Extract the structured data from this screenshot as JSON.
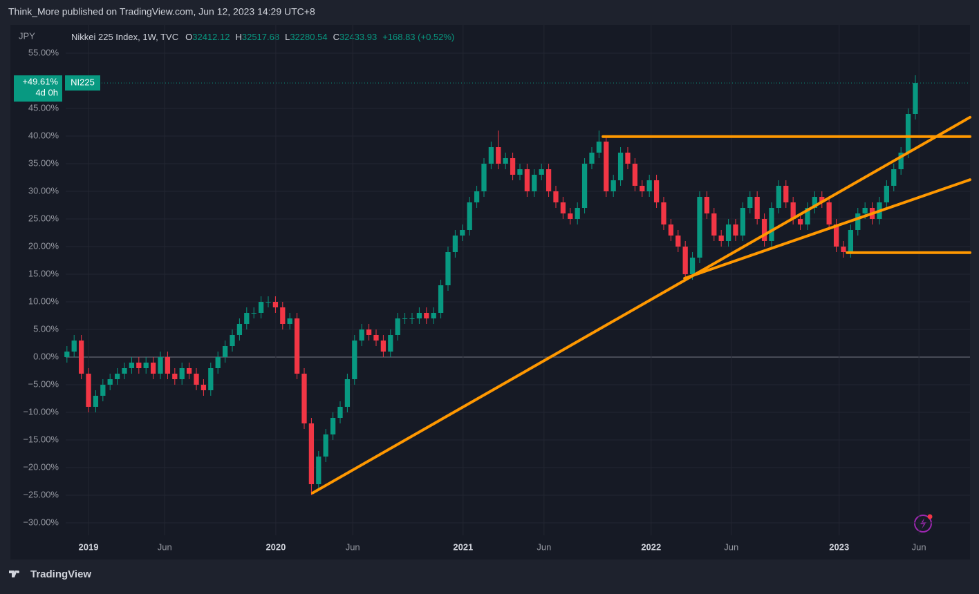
{
  "header": {
    "published": "Think_More published on TradingView.com, Jun 12, 2023 14:29 UTC+8"
  },
  "footer": {
    "brand": "TradingView"
  },
  "chart_data": {
    "type": "candlestick",
    "currency": "JPY",
    "legend": {
      "symbol": "Nikkei 225 Index, 1W, TVC",
      "ohlc": [
        {
          "label": "O",
          "value": "32412.12"
        },
        {
          "label": "H",
          "value": "32517.68"
        },
        {
          "label": "L",
          "value": "32280.54"
        },
        {
          "label": "C",
          "value": "32433.93"
        }
      ],
      "change": "+168.83 (+0.52%)"
    },
    "last_badge": {
      "label": "+49.61%",
      "countdown": "4d 0h",
      "ticker": "NI225"
    },
    "up_color": "#089981",
    "down_color": "#f23645",
    "grid": true,
    "x": [
      -6,
      -4,
      -2,
      0,
      2,
      4,
      6,
      8,
      10,
      12,
      14,
      16,
      18,
      20,
      22,
      24,
      26,
      28,
      30,
      32,
      34,
      36,
      38,
      40,
      42,
      44,
      46,
      48,
      50,
      52,
      54,
      56,
      58,
      60,
      62,
      64,
      66,
      68,
      70,
      72,
      74,
      76,
      78,
      80,
      82,
      84,
      86,
      88,
      90,
      92,
      94,
      96,
      98,
      100,
      102,
      104,
      106,
      108,
      110,
      112,
      114,
      116,
      118,
      120,
      122,
      124,
      126,
      128,
      130,
      132,
      134,
      136,
      138,
      140,
      142,
      144,
      146,
      148,
      150,
      152,
      154,
      156,
      158,
      160,
      162,
      164,
      166,
      168,
      170,
      172,
      174,
      176,
      178,
      180,
      182,
      184,
      186,
      188,
      190,
      192,
      194,
      196,
      198,
      200,
      202,
      204,
      206,
      208,
      210,
      212,
      214,
      216,
      218,
      220,
      222,
      224,
      226,
      228,
      230
    ],
    "open": [
      0,
      1,
      3,
      -3,
      -9,
      -7,
      -5,
      -4,
      -3,
      -2,
      -1,
      -2,
      -1,
      -3,
      0,
      -3,
      -4,
      -2,
      -3,
      -5,
      -6,
      -2,
      0,
      2,
      4,
      6,
      8,
      8,
      10,
      10,
      9,
      6,
      7,
      -3,
      -12,
      -23,
      -18,
      -14,
      -11,
      -9,
      -4,
      3,
      5,
      4,
      3,
      1,
      4,
      7,
      7,
      7,
      8,
      7,
      8,
      13,
      19,
      22,
      23,
      28,
      30,
      35,
      38,
      35,
      36,
      33,
      34,
      30,
      33,
      34,
      30,
      28,
      26,
      25,
      27,
      35,
      37,
      39,
      30,
      32,
      37,
      35,
      31,
      30,
      32,
      28,
      24,
      22,
      20,
      15,
      18,
      29,
      26,
      22,
      21,
      24,
      22,
      27,
      29,
      25,
      21,
      27,
      31,
      28,
      25,
      24,
      27,
      29,
      28,
      24,
      20,
      19,
      23,
      26,
      27,
      25,
      28,
      31,
      34,
      37,
      44
    ],
    "high": [
      2,
      4,
      4,
      -2,
      -6,
      -4,
      -3,
      -2,
      -1,
      0,
      0,
      0,
      0,
      1,
      1,
      -2,
      -1,
      -1,
      -2,
      -4,
      -1,
      1,
      3,
      5,
      7,
      9,
      9,
      11,
      11,
      11,
      10,
      8,
      8,
      -2,
      -11,
      -17,
      -13,
      -10,
      -8,
      -3,
      4,
      6,
      6,
      5,
      4,
      5,
      8,
      8,
      8,
      9,
      9,
      9,
      14,
      20,
      23,
      24,
      29,
      31,
      36,
      39,
      41,
      37,
      37,
      35,
      35,
      34,
      35,
      35,
      31,
      29,
      27,
      28,
      36,
      38,
      41,
      40,
      33,
      38,
      38,
      36,
      32,
      33,
      33,
      29,
      25,
      23,
      21,
      19,
      30,
      30,
      27,
      23,
      25,
      25,
      28,
      30,
      30,
      26,
      28,
      32,
      32,
      29,
      26,
      28,
      30,
      30,
      29,
      25,
      21,
      24,
      27,
      28,
      28,
      29,
      32,
      35,
      38,
      45,
      51
    ],
    "low": [
      -1,
      0,
      -4,
      -10,
      -10,
      -8,
      -6,
      -5,
      -4,
      -3,
      -3,
      -3,
      -4,
      -4,
      -4,
      -5,
      -5,
      -4,
      -6,
      -7,
      -7,
      -3,
      -1,
      1,
      3,
      5,
      7,
      7,
      9,
      8,
      5,
      5,
      -4,
      -13,
      -25,
      -24,
      -19,
      -15,
      -12,
      -10,
      -5,
      2,
      3,
      2,
      0,
      0,
      3,
      6,
      6,
      6,
      6,
      6,
      7,
      12,
      18,
      21,
      22,
      27,
      29,
      34,
      34,
      34,
      32,
      32,
      29,
      29,
      32,
      29,
      27,
      25,
      24,
      24,
      26,
      34,
      36,
      29,
      29,
      31,
      34,
      30,
      29,
      29,
      27,
      23,
      21,
      19,
      14,
      14,
      17,
      25,
      21,
      20,
      20,
      21,
      21,
      26,
      24,
      20,
      20,
      26,
      27,
      24,
      23,
      23,
      26,
      27,
      23,
      19,
      18,
      18,
      22,
      25,
      24,
      24,
      27,
      30,
      33,
      36,
      43
    ],
    "close": [
      1,
      3,
      -3,
      -9,
      -7,
      -5,
      -4,
      -3,
      -2,
      -1,
      -2,
      -1,
      -3,
      0,
      -3,
      -4,
      -2,
      -3,
      -5,
      -6,
      -2,
      0,
      2,
      4,
      6,
      8,
      8,
      10,
      10,
      9,
      6,
      7,
      -3,
      -12,
      -23,
      -18,
      -14,
      -11,
      -9,
      -4,
      3,
      5,
      4,
      3,
      1,
      4,
      7,
      7,
      7,
      8,
      7,
      8,
      13,
      19,
      22,
      23,
      28,
      30,
      35,
      38,
      35,
      36,
      33,
      34,
      30,
      33,
      34,
      30,
      28,
      26,
      25,
      27,
      35,
      37,
      39,
      30,
      32,
      37,
      35,
      31,
      30,
      32,
      28,
      24,
      22,
      20,
      15,
      18,
      29,
      26,
      22,
      21,
      24,
      22,
      27,
      29,
      25,
      21,
      27,
      31,
      28,
      25,
      24,
      27,
      29,
      28,
      24,
      20,
      19,
      23,
      26,
      27,
      25,
      28,
      31,
      34,
      37,
      44,
      49.61
    ],
    "xlim": [
      -6.35,
      245.2
    ],
    "xticks": [
      {
        "value": 0,
        "label": "2019"
      },
      {
        "value": 21.2,
        "label": "Jun"
      },
      {
        "value": 52.1,
        "label": "2020"
      },
      {
        "value": 73.5,
        "label": "Jun"
      },
      {
        "value": 104.2,
        "label": "2021"
      },
      {
        "value": 126.7,
        "label": "Jun"
      },
      {
        "value": 156.5,
        "label": "2022"
      },
      {
        "value": 178.8,
        "label": "Jun"
      },
      {
        "value": 208.8,
        "label": "2023"
      },
      {
        "value": 231,
        "label": "Jun"
      }
    ],
    "ylim": [
      -32.25,
      60.125
    ],
    "yticks": [
      {
        "value": -30,
        "label": "−30.00%"
      },
      {
        "value": -25,
        "label": "−25.00%"
      },
      {
        "value": -20,
        "label": "−20.00%"
      },
      {
        "value": -15,
        "label": "−15.00%"
      },
      {
        "value": -10,
        "label": "−10.00%"
      },
      {
        "value": -5,
        "label": "−5.00%"
      },
      {
        "value": 0,
        "label": "0.00%"
      },
      {
        "value": 5,
        "label": "5.00%"
      },
      {
        "value": 10,
        "label": "10.00%"
      },
      {
        "value": 15,
        "label": "15.00%"
      },
      {
        "value": 20,
        "label": "20.00%"
      },
      {
        "value": 25,
        "label": "25.00%"
      },
      {
        "value": 30,
        "label": "30.00%"
      },
      {
        "value": 35,
        "label": "35.00%"
      },
      {
        "value": 40,
        "label": "40.00%"
      },
      {
        "value": 45,
        "label": "45.00%"
      },
      {
        "value": 55,
        "label": "55.00%"
      }
    ],
    "trendline_color": "#ff9800",
    "trendlines": [
      {
        "x": [
          62.3,
          245.2
        ],
        "y": [
          -24.6,
          43.4
        ]
      },
      {
        "x": [
          143.1,
          245.2
        ],
        "y": [
          39.9,
          39.9
        ]
      },
      {
        "x": [
          165.8,
          245.2
        ],
        "y": [
          14.25,
          32.1
        ]
      },
      {
        "x": [
          211,
          245.2
        ],
        "y": [
          18.9,
          18.9
        ]
      }
    ]
  }
}
